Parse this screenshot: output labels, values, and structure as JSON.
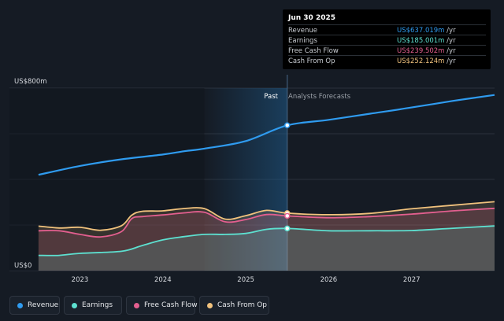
{
  "chart_data": {
    "type": "line",
    "y_axis": {
      "top_label": "US$800m",
      "bottom_label": "US$0",
      "ylim": [
        0,
        800
      ]
    },
    "x_ticks": [
      "2023",
      "2024",
      "2025",
      "2026",
      "2027"
    ],
    "divider": {
      "past_label": "Past",
      "forecast_label": "Analysts Forecasts",
      "date": 2025.5
    },
    "series": [
      {
        "name": "Revenue",
        "color": "#2f9bef",
        "points": [
          [
            2022.5,
            420
          ],
          [
            2023.0,
            459
          ],
          [
            2023.5,
            488
          ],
          [
            2024.0,
            509
          ],
          [
            2024.25,
            523
          ],
          [
            2024.5,
            535
          ],
          [
            2025.0,
            568
          ],
          [
            2025.5,
            637
          ],
          [
            2026.0,
            661
          ],
          [
            2026.5,
            688
          ],
          [
            2027.0,
            715
          ],
          [
            2027.5,
            744
          ],
          [
            2028.0,
            770
          ]
        ]
      },
      {
        "name": "Earnings",
        "color": "#5de0d0",
        "points": [
          [
            2022.5,
            67
          ],
          [
            2022.75,
            67
          ],
          [
            2023.0,
            76
          ],
          [
            2023.5,
            85
          ],
          [
            2023.75,
            110
          ],
          [
            2024.0,
            135
          ],
          [
            2024.25,
            149
          ],
          [
            2024.5,
            159
          ],
          [
            2024.75,
            159
          ],
          [
            2025.0,
            163
          ],
          [
            2025.25,
            181
          ],
          [
            2025.5,
            185
          ],
          [
            2026.0,
            175
          ],
          [
            2026.5,
            175
          ],
          [
            2027.0,
            176
          ],
          [
            2027.5,
            186
          ],
          [
            2028.0,
            196
          ]
        ]
      },
      {
        "name": "Free Cash Flow",
        "color": "#e35f8f",
        "points": [
          [
            2022.5,
            175
          ],
          [
            2022.75,
            175
          ],
          [
            2023.0,
            159
          ],
          [
            2023.25,
            148
          ],
          [
            2023.5,
            171
          ],
          [
            2023.625,
            228
          ],
          [
            2023.75,
            237
          ],
          [
            2024.0,
            244
          ],
          [
            2024.25,
            253
          ],
          [
            2024.5,
            256
          ],
          [
            2024.75,
            214
          ],
          [
            2025.0,
            224
          ],
          [
            2025.25,
            246
          ],
          [
            2025.5,
            240
          ],
          [
            2026.0,
            232
          ],
          [
            2026.5,
            237
          ],
          [
            2027.0,
            248
          ],
          [
            2027.5,
            262
          ],
          [
            2028.0,
            273
          ]
        ]
      },
      {
        "name": "Cash From Op",
        "color": "#f1c27d",
        "points": [
          [
            2022.5,
            195
          ],
          [
            2022.75,
            187
          ],
          [
            2023.0,
            190
          ],
          [
            2023.25,
            177
          ],
          [
            2023.5,
            197
          ],
          [
            2023.625,
            243
          ],
          [
            2023.75,
            260
          ],
          [
            2024.0,
            262
          ],
          [
            2024.25,
            272
          ],
          [
            2024.5,
            272
          ],
          [
            2024.75,
            226
          ],
          [
            2025.0,
            241
          ],
          [
            2025.25,
            264
          ],
          [
            2025.5,
            252
          ],
          [
            2026.0,
            245
          ],
          [
            2026.5,
            251
          ],
          [
            2027.0,
            271
          ],
          [
            2027.5,
            287
          ],
          [
            2028.0,
            302
          ]
        ]
      }
    ],
    "tooltip": {
      "date": "Jun 30 2025",
      "rows": [
        {
          "label": "Revenue",
          "value": "US$637.019m",
          "unit": " /yr",
          "color": "#2f9bef"
        },
        {
          "label": "Earnings",
          "value": "US$185.001m",
          "unit": " /yr",
          "color": "#5de0d0"
        },
        {
          "label": "Free Cash Flow",
          "value": "US$239.502m",
          "unit": " /yr",
          "color": "#e35f8f"
        },
        {
          "label": "Cash From Op",
          "value": "US$252.124m",
          "unit": " /yr",
          "color": "#f1c27d"
        }
      ]
    },
    "legend": [
      {
        "label": "Revenue",
        "color": "#2f9bef"
      },
      {
        "label": "Earnings",
        "color": "#5de0d0"
      },
      {
        "label": "Free Cash Flow",
        "color": "#e35f8f"
      },
      {
        "label": "Cash From Op",
        "color": "#f1c27d"
      }
    ],
    "grid": true,
    "legend_placement": "bottom-left"
  }
}
